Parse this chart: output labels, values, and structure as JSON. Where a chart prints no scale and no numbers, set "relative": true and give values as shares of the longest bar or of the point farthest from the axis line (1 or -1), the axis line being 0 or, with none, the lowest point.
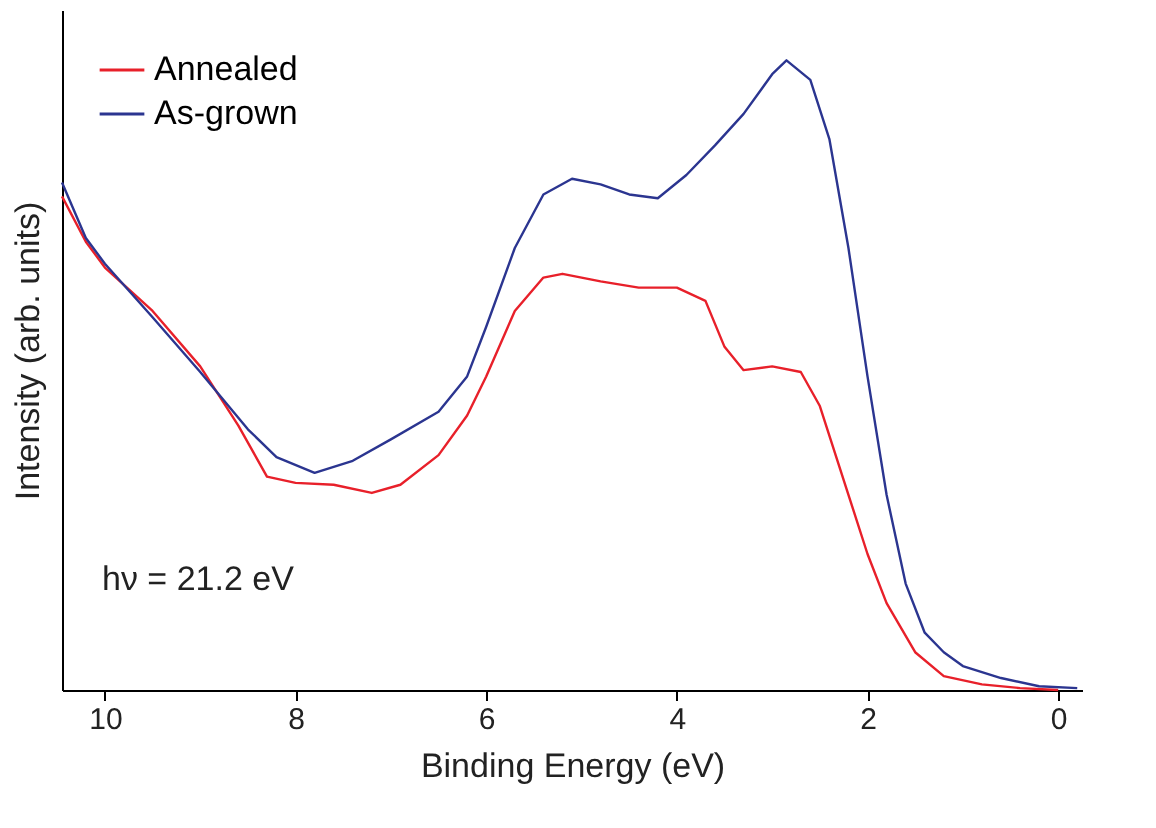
{
  "chart_data": {
    "type": "line",
    "relative": true,
    "xlabel": "Binding Energy (eV)",
    "ylabel": "Intensity (arb. units)",
    "xlim": [
      10.45,
      -0.25
    ],
    "xticks": [
      10,
      8,
      6,
      4,
      2,
      0
    ],
    "legend": "top left",
    "grid": false,
    "line_style": "solid",
    "marker": "none",
    "tick_labels": "x",
    "annotations": [
      "hν = 21.2 eV"
    ],
    "series": [
      {
        "name": "Annealed",
        "color": "#e8202a",
        "x": [
          10.45,
          10.2,
          10,
          9.5,
          9,
          8.6,
          8.3,
          8,
          7.6,
          7.2,
          6.9,
          6.5,
          6.2,
          6,
          5.7,
          5.4,
          5.2,
          4.8,
          4.4,
          4,
          3.7,
          3.5,
          3.3,
          3,
          2.7,
          2.5,
          2.2,
          2,
          1.8,
          1.5,
          1.2,
          0.8,
          0.4,
          0
        ],
        "values": [
          0.784,
          0.712,
          0.671,
          0.602,
          0.514,
          0.42,
          0.339,
          0.329,
          0.326,
          0.313,
          0.326,
          0.373,
          0.436,
          0.498,
          0.602,
          0.655,
          0.661,
          0.649,
          0.639,
          0.639,
          0.618,
          0.545,
          0.508,
          0.514,
          0.505,
          0.451,
          0.31,
          0.216,
          0.138,
          0.06,
          0.022,
          0.009,
          0.003,
          0
        ]
      },
      {
        "name": "As-grown",
        "color": "#2b3590",
        "x": [
          10.45,
          10.2,
          10,
          9.5,
          9,
          8.5,
          8.2,
          7.8,
          7.4,
          7,
          6.5,
          6.2,
          6,
          5.7,
          5.4,
          5.1,
          4.8,
          4.5,
          4.2,
          3.9,
          3.6,
          3.3,
          3,
          2.85,
          2.6,
          2.4,
          2.2,
          2,
          1.8,
          1.6,
          1.4,
          1.2,
          1,
          0.6,
          0.2,
          -0.2
        ],
        "values": [
          0.806,
          0.718,
          0.677,
          0.592,
          0.505,
          0.414,
          0.37,
          0.345,
          0.364,
          0.398,
          0.442,
          0.498,
          0.577,
          0.702,
          0.787,
          0.812,
          0.803,
          0.787,
          0.781,
          0.818,
          0.865,
          0.915,
          0.978,
          1.0,
          0.969,
          0.875,
          0.702,
          0.498,
          0.31,
          0.169,
          0.091,
          0.06,
          0.038,
          0.019,
          0.006,
          0.003
        ]
      }
    ]
  }
}
